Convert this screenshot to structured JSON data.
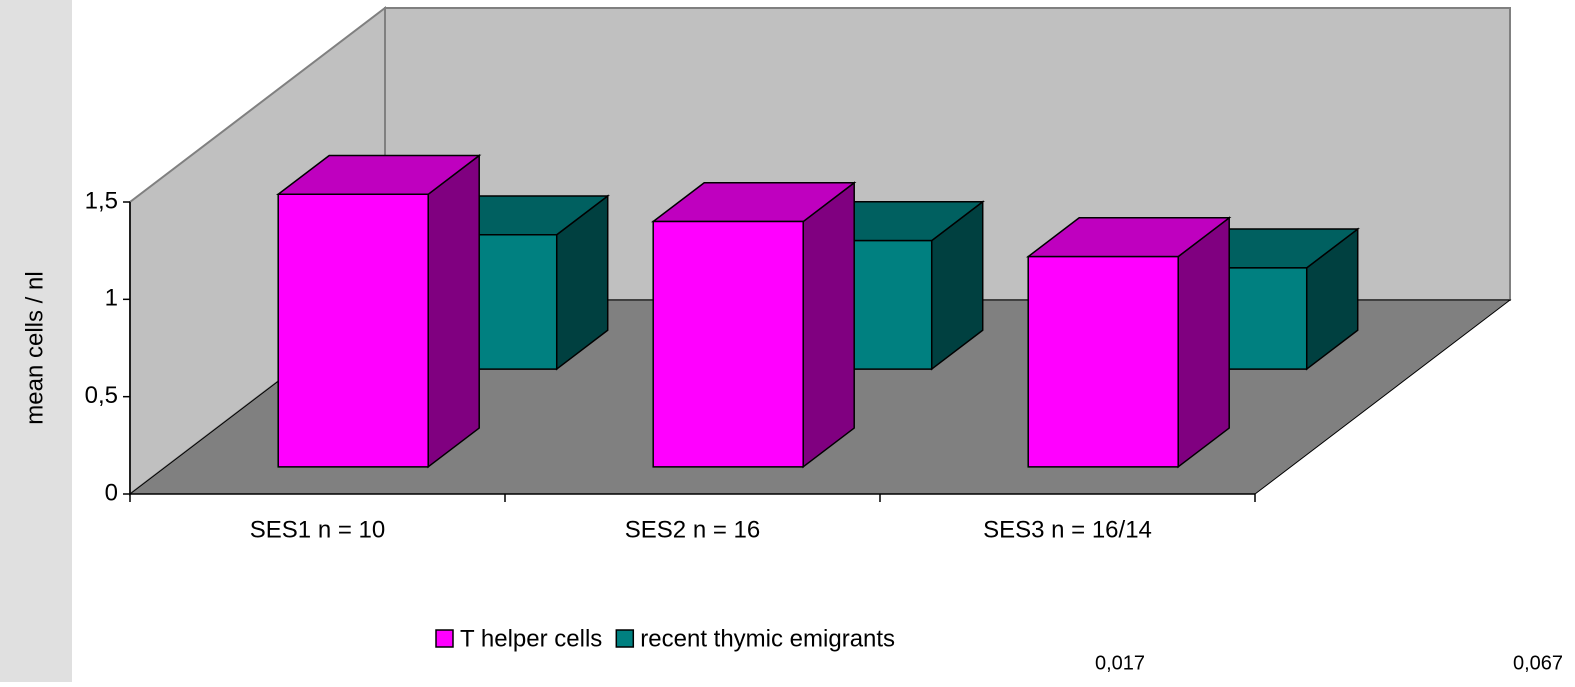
{
  "chart_data": {
    "type": "bar3d",
    "y_label": "mean cells / nl",
    "categories": [
      "SES1 n = 10",
      "SES2 n = 16",
      "SES3 n = 16/14"
    ],
    "series": [
      {
        "name": "T helper cells",
        "color": "#ff00ff",
        "values": [
          1.4,
          1.26,
          1.08
        ]
      },
      {
        "name": "recent thymic emigrants",
        "color": "#008080",
        "values": [
          0.69,
          0.66,
          0.52
        ]
      }
    ],
    "ylim": [
      0,
      1.5
    ],
    "yticks": [
      0,
      {
        "value": 0.5,
        "label": "0,5"
      },
      1,
      {
        "value": 1.5,
        "label": "1,5"
      }
    ],
    "legend": "bottom",
    "annotations": [
      "0,017",
      "0,067"
    ]
  }
}
